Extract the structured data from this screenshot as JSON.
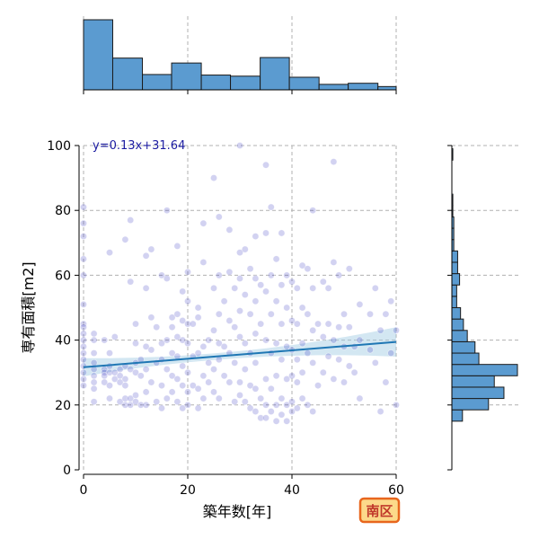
{
  "chart_data": {
    "type": "scatter",
    "xlabel": "築年数[年]",
    "ylabel": "専有面積[m2]",
    "xlim": [
      0,
      60
    ],
    "ylim": [
      0,
      100
    ],
    "x_ticks": [
      0,
      20,
      40,
      60
    ],
    "y_ticks": [
      0,
      20,
      40,
      60,
      80,
      100
    ],
    "grid": true,
    "regression": {
      "label": "y=0.13x+31.64",
      "slope": 0.13,
      "intercept": 31.64,
      "line_color": "#1f77b4",
      "band_color": "#9ec9e2"
    },
    "point_color": "#3232c0",
    "points": [
      [
        0,
        81
      ],
      [
        0,
        76
      ],
      [
        0,
        72
      ],
      [
        0,
        65
      ],
      [
        0,
        60
      ],
      [
        0,
        51
      ],
      [
        0,
        45
      ],
      [
        0,
        44
      ],
      [
        0,
        42
      ],
      [
        0,
        40
      ],
      [
        0,
        38
      ],
      [
        0,
        36
      ],
      [
        0,
        34
      ],
      [
        0,
        32
      ],
      [
        0,
        30
      ],
      [
        0,
        28
      ],
      [
        0,
        26
      ],
      [
        2,
        42
      ],
      [
        2,
        40
      ],
      [
        2,
        36
      ],
      [
        2,
        33
      ],
      [
        2,
        31
      ],
      [
        2,
        29
      ],
      [
        2,
        27
      ],
      [
        2,
        25
      ],
      [
        2,
        21
      ],
      [
        4,
        31
      ],
      [
        4,
        30
      ],
      [
        4,
        29
      ],
      [
        4,
        27
      ],
      [
        4,
        40
      ],
      [
        5,
        67
      ],
      [
        5,
        36
      ],
      [
        5,
        32
      ],
      [
        5,
        30
      ],
      [
        5,
        26
      ],
      [
        5,
        22
      ],
      [
        6,
        30
      ],
      [
        6,
        28
      ],
      [
        6,
        41
      ],
      [
        7,
        31
      ],
      [
        7,
        29
      ],
      [
        7,
        27
      ],
      [
        7,
        21
      ],
      [
        8,
        32
      ],
      [
        8,
        28
      ],
      [
        8,
        26
      ],
      [
        8,
        22
      ],
      [
        8,
        20
      ],
      [
        8,
        71
      ],
      [
        9,
        77
      ],
      [
        9,
        58
      ],
      [
        9,
        31
      ],
      [
        9,
        22
      ],
      [
        9,
        20
      ],
      [
        10,
        39
      ],
      [
        10,
        33
      ],
      [
        10,
        30
      ],
      [
        10,
        23
      ],
      [
        10,
        21
      ],
      [
        10,
        45
      ],
      [
        11,
        34
      ],
      [
        11,
        29
      ],
      [
        11,
        20
      ],
      [
        12,
        66
      ],
      [
        12,
        56
      ],
      [
        12,
        38
      ],
      [
        12,
        31
      ],
      [
        12,
        24
      ],
      [
        12,
        20
      ],
      [
        13,
        68
      ],
      [
        13,
        47
      ],
      [
        13,
        37
      ],
      [
        13,
        27
      ],
      [
        14,
        44
      ],
      [
        14,
        33
      ],
      [
        14,
        21
      ],
      [
        15,
        60
      ],
      [
        15,
        39
      ],
      [
        15,
        34
      ],
      [
        15,
        26
      ],
      [
        15,
        19
      ],
      [
        16,
        80
      ],
      [
        16,
        59
      ],
      [
        16,
        40
      ],
      [
        16,
        31
      ],
      [
        16,
        22
      ],
      [
        17,
        47
      ],
      [
        17,
        44
      ],
      [
        17,
        36
      ],
      [
        17,
        29
      ],
      [
        17,
        24
      ],
      [
        18,
        69
      ],
      [
        18,
        48
      ],
      [
        18,
        41
      ],
      [
        18,
        35
      ],
      [
        18,
        28
      ],
      [
        18,
        21
      ],
      [
        19,
        55
      ],
      [
        19,
        46
      ],
      [
        19,
        40
      ],
      [
        19,
        32
      ],
      [
        19,
        26
      ],
      [
        19,
        19
      ],
      [
        20,
        61
      ],
      [
        20,
        52
      ],
      [
        20,
        45
      ],
      [
        20,
        39
      ],
      [
        20,
        30
      ],
      [
        20,
        24
      ],
      [
        20,
        20
      ],
      [
        21,
        45
      ],
      [
        21,
        35
      ],
      [
        21,
        26
      ],
      [
        22,
        50
      ],
      [
        22,
        47
      ],
      [
        22,
        36
      ],
      [
        22,
        25
      ],
      [
        22,
        19
      ],
      [
        23,
        76
      ],
      [
        23,
        64
      ],
      [
        23,
        38
      ],
      [
        23,
        29
      ],
      [
        23,
        22
      ],
      [
        24,
        40
      ],
      [
        24,
        33
      ],
      [
        24,
        27
      ],
      [
        25,
        90
      ],
      [
        25,
        56
      ],
      [
        25,
        43
      ],
      [
        25,
        31
      ],
      [
        25,
        24
      ],
      [
        26,
        78
      ],
      [
        26,
        60
      ],
      [
        26,
        48
      ],
      [
        26,
        39
      ],
      [
        26,
        34
      ],
      [
        26,
        22
      ],
      [
        27,
        52
      ],
      [
        27,
        38
      ],
      [
        27,
        29
      ],
      [
        28,
        74
      ],
      [
        28,
        61
      ],
      [
        28,
        46
      ],
      [
        28,
        36
      ],
      [
        28,
        27
      ],
      [
        29,
        56
      ],
      [
        29,
        44
      ],
      [
        29,
        33
      ],
      [
        29,
        21
      ],
      [
        30,
        100
      ],
      [
        30,
        67
      ],
      [
        30,
        59
      ],
      [
        30,
        49
      ],
      [
        30,
        41
      ],
      [
        30,
        27
      ],
      [
        30,
        23
      ],
      [
        31,
        68
      ],
      [
        31,
        54
      ],
      [
        31,
        39
      ],
      [
        31,
        31
      ],
      [
        31,
        21
      ],
      [
        32,
        62
      ],
      [
        32,
        48
      ],
      [
        32,
        36
      ],
      [
        32,
        26
      ],
      [
        32,
        19
      ],
      [
        33,
        72
      ],
      [
        33,
        59
      ],
      [
        33,
        52
      ],
      [
        33,
        42
      ],
      [
        33,
        33
      ],
      [
        33,
        25
      ],
      [
        33,
        18
      ],
      [
        34,
        57
      ],
      [
        34,
        45
      ],
      [
        34,
        22
      ],
      [
        34,
        16
      ],
      [
        35,
        94
      ],
      [
        35,
        73
      ],
      [
        35,
        55
      ],
      [
        35,
        40
      ],
      [
        35,
        28
      ],
      [
        35,
        20
      ],
      [
        35,
        16
      ],
      [
        36,
        81
      ],
      [
        36,
        60
      ],
      [
        36,
        48
      ],
      [
        36,
        36
      ],
      [
        36,
        25
      ],
      [
        36,
        18
      ],
      [
        37,
        65
      ],
      [
        37,
        52
      ],
      [
        37,
        39
      ],
      [
        37,
        29
      ],
      [
        37,
        20
      ],
      [
        37,
        15
      ],
      [
        38,
        73
      ],
      [
        38,
        57
      ],
      [
        38,
        45
      ],
      [
        38,
        34
      ],
      [
        38,
        22
      ],
      [
        38,
        17
      ],
      [
        39,
        60
      ],
      [
        39,
        50
      ],
      [
        39,
        38
      ],
      [
        39,
        28
      ],
      [
        39,
        20
      ],
      [
        39,
        15
      ],
      [
        40,
        58
      ],
      [
        40,
        46
      ],
      [
        40,
        37
      ],
      [
        40,
        29
      ],
      [
        40,
        21
      ],
      [
        40,
        18
      ],
      [
        41,
        56
      ],
      [
        41,
        45
      ],
      [
        41,
        34
      ],
      [
        41,
        27
      ],
      [
        41,
        19
      ],
      [
        42,
        63
      ],
      [
        42,
        50
      ],
      [
        42,
        39
      ],
      [
        42,
        30
      ],
      [
        42,
        22
      ],
      [
        43,
        62
      ],
      [
        43,
        48
      ],
      [
        43,
        36
      ],
      [
        43,
        20
      ],
      [
        44,
        80
      ],
      [
        44,
        56
      ],
      [
        44,
        43
      ],
      [
        44,
        33
      ],
      [
        44,
        18
      ],
      [
        45,
        45
      ],
      [
        45,
        26
      ],
      [
        46,
        58
      ],
      [
        46,
        41
      ],
      [
        46,
        30
      ],
      [
        47,
        56
      ],
      [
        47,
        45
      ],
      [
        47,
        35
      ],
      [
        48,
        95
      ],
      [
        48,
        64
      ],
      [
        48,
        40
      ],
      [
        48,
        28
      ],
      [
        49,
        60
      ],
      [
        49,
        44
      ],
      [
        49,
        34
      ],
      [
        50,
        48
      ],
      [
        50,
        38
      ],
      [
        50,
        27
      ],
      [
        51,
        62
      ],
      [
        51,
        44
      ],
      [
        51,
        32
      ],
      [
        52,
        38
      ],
      [
        52,
        30
      ],
      [
        53,
        51
      ],
      [
        53,
        40
      ],
      [
        53,
        22
      ],
      [
        55,
        48
      ],
      [
        55,
        37
      ],
      [
        56,
        56
      ],
      [
        56,
        33
      ],
      [
        57,
        43
      ],
      [
        57,
        18
      ],
      [
        58,
        48
      ],
      [
        58,
        27
      ],
      [
        59,
        52
      ],
      [
        59,
        36
      ],
      [
        60,
        20
      ],
      [
        60,
        43
      ]
    ],
    "top_histogram": {
      "bin_edges": [
        0,
        5.6,
        11.3,
        16.9,
        22.6,
        28.2,
        33.9,
        39.5,
        45.2,
        50.8,
        56.5,
        60
      ],
      "counts": [
        128,
        58,
        28,
        49,
        27,
        25,
        59,
        23,
        10,
        12,
        6
      ],
      "color": "#5b9bd0"
    },
    "right_histogram": {
      "bin_edges": [
        15,
        18.5,
        22,
        25.5,
        29,
        32.5,
        36,
        39.5,
        43,
        46.5,
        50,
        53.5,
        57,
        60.5,
        64,
        67.5,
        71,
        74.5,
        78,
        81.5,
        85,
        88.5,
        92,
        95.5,
        99
      ],
      "counts": [
        11,
        38,
        54,
        44,
        68,
        28,
        24,
        16,
        12,
        9,
        5,
        5,
        8,
        6,
        6,
        2,
        2,
        2,
        1,
        1,
        0,
        0,
        0,
        1
      ],
      "color": "#5b9bd0"
    },
    "badge": {
      "text": "南区",
      "fill": "#fcd98a",
      "border": "#e8661d",
      "text_color": "#c0392b"
    }
  }
}
